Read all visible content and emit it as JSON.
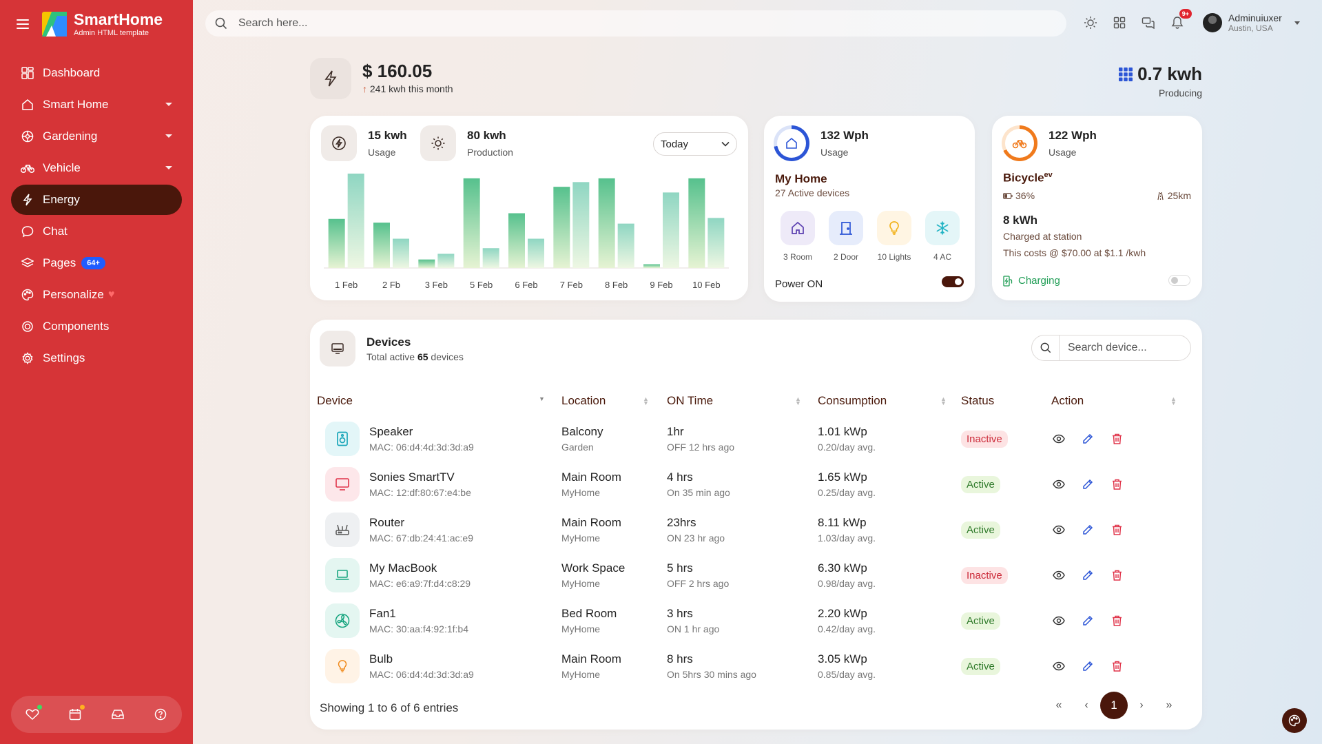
{
  "brand": {
    "name": "SmartHome",
    "subtitle": "Admin HTML template"
  },
  "sidebar": {
    "items": [
      {
        "label": "Dashboard",
        "icon": "grid-icon"
      },
      {
        "label": "Smart Home",
        "icon": "home-icon"
      },
      {
        "label": "Gardening",
        "icon": "flower-icon"
      },
      {
        "label": "Vehicle",
        "icon": "bicycle-icon"
      },
      {
        "label": "Energy",
        "icon": "bolt-icon"
      },
      {
        "label": "Chat",
        "icon": "chat-icon"
      },
      {
        "label": "Pages",
        "icon": "layers-icon",
        "badge": "64+"
      },
      {
        "label": "Personalize",
        "icon": "palette-icon"
      },
      {
        "label": "Components",
        "icon": "component-icon"
      },
      {
        "label": "Settings",
        "icon": "gear-icon"
      }
    ]
  },
  "header": {
    "search_placeholder": "Search here...",
    "notifications_badge": "9+",
    "user_name": "Adminuiuxer",
    "user_location": "Austin, USA"
  },
  "summary": {
    "amount": "$ 160.05",
    "month_usage": "241 kwh this month",
    "producing_value": "0.7 kwh",
    "producing_label": "Producing"
  },
  "energy": {
    "usage_value": "15 kwh",
    "usage_label": "Usage",
    "production_value": "80 kwh",
    "production_label": "Production",
    "period": "Today"
  },
  "chart_data": {
    "type": "bar",
    "categories": [
      "1 Feb",
      "2 Fb",
      "3 Feb",
      "5 Feb",
      "6 Feb",
      "7 Feb",
      "8 Feb",
      "9 Feb",
      "10 Feb"
    ],
    "series": [
      {
        "values": [
          52,
          48,
          9,
          95,
          58,
          86,
          95,
          4,
          95
        ]
      },
      {
        "values": [
          100,
          31,
          15,
          21,
          31,
          91,
          47,
          80,
          53
        ]
      }
    ],
    "ylim": [
      0,
      100
    ],
    "colors": [
      "#6cc79a",
      "#9fd9c8"
    ]
  },
  "home": {
    "usage_value": "132 Wph",
    "usage_label": "Usage",
    "title": "My Home",
    "active_devices": "27 Active devices",
    "tiles": [
      {
        "label": "3 Room",
        "icon": "house-icon",
        "bg": "#eeeaf8",
        "color": "#5b3fb0"
      },
      {
        "label": "2 Door",
        "icon": "door-icon",
        "bg": "#e6ecfb",
        "color": "#2c55d6"
      },
      {
        "label": "10 Lights",
        "icon": "bulb-icon",
        "bg": "#fff5e3",
        "color": "#f2b21c"
      },
      {
        "label": "4 AC",
        "icon": "snowflake-icon",
        "bg": "#e4f6f8",
        "color": "#21b3c4"
      }
    ],
    "power_label": "Power ON",
    "power_on": true
  },
  "bike": {
    "usage_value": "122 Wph",
    "usage_label": "Usage",
    "title": "Bicycle",
    "title_sup": "ev",
    "battery": "36%",
    "range": "25km",
    "charge": "8 kWh",
    "charged_at": "Charged at station",
    "cost": "This costs @ $70.00 at $1.1 /kwh",
    "charging_label": "Charging",
    "charging_on": false
  },
  "devices": {
    "title": "Devices",
    "subtitle_prefix": "Total active ",
    "subtitle_count": "65",
    "subtitle_suffix": " devices",
    "search_placeholder": "Search device...",
    "columns": [
      "Device",
      "Location",
      "ON Time",
      "Consumption",
      "Status",
      "Action"
    ],
    "rows": [
      {
        "name": "Speaker",
        "mac": "MAC: 06:d4:4d:3d:3d:a9",
        "location": "Balcony",
        "area": "Garden",
        "on_time": "1hr",
        "on_sub": "OFF 12 hrs ago",
        "consumption": "1.01 kWp",
        "avg": "0.20/day avg.",
        "status": "Inactive",
        "icon": "speaker-icon",
        "bg": "#e3f6f8",
        "color": "#1aa6b9"
      },
      {
        "name": "Sonies SmartTV",
        "mac": "MAC: 12:df:80:67:e4:be",
        "location": "Main Room",
        "area": "MyHome",
        "on_time": "4 hrs",
        "on_sub": "On 35 min ago",
        "consumption": "1.65 kWp",
        "avg": "0.25/day avg.",
        "status": "Active",
        "icon": "tv-icon",
        "bg": "#fde7ea",
        "color": "#e0344a"
      },
      {
        "name": "Router",
        "mac": "MAC: 67:db:24:41:ac:e9",
        "location": "Main Room",
        "area": "MyHome",
        "on_time": "23hrs",
        "on_sub": "ON 23 hr ago",
        "consumption": "8.11 kWp",
        "avg": "1.03/day avg.",
        "status": "Active",
        "icon": "router-icon",
        "bg": "#eef0f2",
        "color": "#555"
      },
      {
        "name": "My MacBook",
        "mac": "MAC: e6:a9:7f:d4:c8:29",
        "location": "Work Space",
        "area": "MyHome",
        "on_time": "5 hrs",
        "on_sub": "OFF 2 hrs ago",
        "consumption": "6.30 kWp",
        "avg": "0.98/day avg.",
        "status": "Inactive",
        "icon": "laptop-icon",
        "bg": "#e4f6f1",
        "color": "#1aa680"
      },
      {
        "name": "Fan1",
        "mac": "MAC: 30:aa:f4:92:1f:b4",
        "location": "Bed Room",
        "area": "MyHome",
        "on_time": "3 hrs",
        "on_sub": "ON 1 hr ago",
        "consumption": "2.20 kWp",
        "avg": "0.42/day avg.",
        "status": "Active",
        "icon": "fan-icon",
        "bg": "#e4f6f1",
        "color": "#15a47e"
      },
      {
        "name": "Bulb",
        "mac": "MAC: 06:d4:4d:3d:3d:a9",
        "location": "Main Room",
        "area": "MyHome",
        "on_time": "8 hrs",
        "on_sub": "On 5hrs 30 mins ago",
        "consumption": "3.05 kWp",
        "avg": "0.85/day avg.",
        "status": "Active",
        "icon": "bulb-icon",
        "bg": "#fff3e6",
        "color": "#f08a1c"
      }
    ],
    "footer": "Showing 1 to 6 of 6 entries",
    "pager": {
      "first": "«",
      "prev": "‹",
      "current": "1",
      "next": "›",
      "last": "»"
    }
  },
  "colors": {
    "sidebar": "#d63437",
    "accent": "#4a170b",
    "active_nav": "#4a170b",
    "badge_blue": "#1f5cff"
  }
}
